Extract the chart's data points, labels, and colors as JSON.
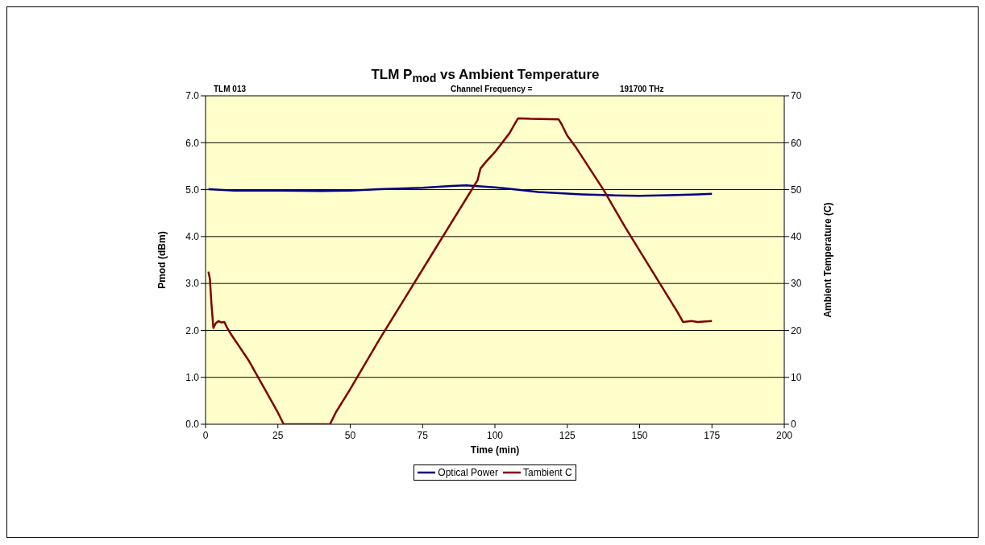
{
  "chart_data": {
    "type": "line",
    "title": "TLM P$_{mod}$ vs Ambient Temperature",
    "xlabel": "Time (min)",
    "ylabel": "Pmod (dBm)",
    "y2label": "Ambient Temperature (C)",
    "annotations": [
      "TLM 013",
      "Channel Frequency =",
      "191700 THz"
    ],
    "xlim": [
      0,
      200
    ],
    "xticks": [
      0,
      25,
      50,
      75,
      100,
      125,
      150,
      175,
      200
    ],
    "ylim": [
      0,
      7
    ],
    "yticks": [
      {
        "value": 0,
        "label": "0.0"
      },
      {
        "value": 1,
        "label": "1.0"
      },
      {
        "value": 2,
        "label": "2.0"
      },
      {
        "value": 3,
        "label": "3.0"
      },
      {
        "value": 4,
        "label": "4.0"
      },
      {
        "value": 5,
        "label": "5.0"
      },
      {
        "value": 6,
        "label": "6.0"
      },
      {
        "value": 7,
        "label": "7.0"
      }
    ],
    "y2lim": [
      0,
      70
    ],
    "y2ticks": [
      0,
      10,
      20,
      30,
      40,
      50,
      60,
      70
    ],
    "grid": "y",
    "legend": "bottom",
    "marker": "none",
    "line_style": "solid",
    "series": [
      {
        "name": "Optical Power",
        "color": "#000080",
        "x": [
          1,
          10,
          25,
          40,
          50,
          60,
          75,
          85,
          90,
          100,
          105,
          115,
          130,
          140,
          150,
          160,
          170,
          175
        ],
        "values": [
          5.01,
          4.98,
          4.98,
          4.97,
          4.98,
          5.01,
          5.04,
          5.08,
          5.09,
          5.05,
          5.02,
          4.95,
          4.9,
          4.88,
          4.87,
          4.88,
          4.9,
          4.91
        ]
      },
      {
        "name": "Tambient C",
        "color": "#800000",
        "axis": "y2",
        "x": [
          1,
          1.5,
          2,
          2.7,
          3.5,
          4.5,
          5.5,
          6.5,
          7.5,
          9,
          15,
          20,
          25,
          27,
          35,
          43,
          45,
          50,
          60,
          70,
          80,
          90,
          94,
          95,
          97,
          100,
          105,
          108,
          112,
          122,
          123,
          125,
          128,
          137.5,
          145,
          150,
          157,
          160,
          163,
          165,
          168,
          170,
          175
        ],
        "values": [
          32.5,
          31,
          26,
          20.5,
          21.5,
          22,
          21.7,
          21.8,
          20.5,
          19,
          13.5,
          8,
          2.5,
          0,
          0,
          0,
          2.5,
          7.5,
          18,
          28,
          38,
          48,
          52,
          54.5,
          56,
          58,
          62,
          65.2,
          65.1,
          65,
          64,
          61.5,
          59,
          50,
          42,
          37,
          30,
          27,
          24,
          21.8,
          22,
          21.8,
          22
        ]
      }
    ]
  }
}
